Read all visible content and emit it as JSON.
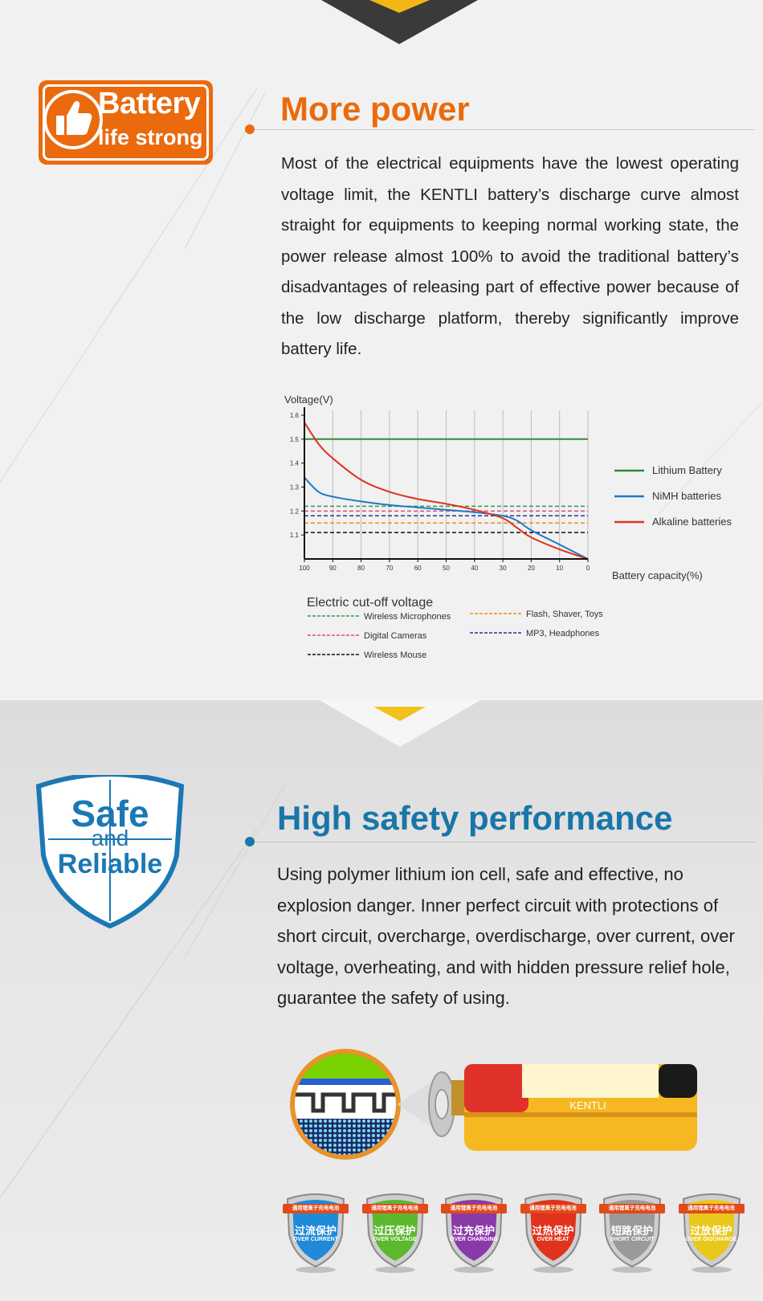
{
  "section_power": {
    "badge": {
      "line1": "Battery",
      "line2": "life strong"
    },
    "title": "More power",
    "paragraph": "Most of the electrical equipments have the lowest operating voltage limit, the KENTLI battery’s discharge curve almost straight for equipments to keeping normal working state, the power release almost 100% to avoid the traditional battery’s disadvantages of releasing part of effective power because of the low discharge platform, thereby significantly improve battery life.",
    "accent_color": "#ea6a0d"
  },
  "chart_data": {
    "type": "line",
    "ylabel": "Voltage(V)",
    "xlabel": "Battery capacity(%)",
    "x_ticks": [
      100,
      90,
      80,
      70,
      60,
      50,
      40,
      30,
      20,
      10,
      0
    ],
    "y_ticks": [
      1.1,
      1.2,
      1.3,
      1.4,
      1.5,
      1.6
    ],
    "xlim": [
      100,
      0
    ],
    "ylim": [
      1.0,
      1.62
    ],
    "grid": "vertical",
    "legend_position": "right",
    "series": [
      {
        "name": "Lithium Battery",
        "color": "#2e8b3a",
        "x": [
          100,
          0
        ],
        "y": [
          1.5,
          1.5
        ]
      },
      {
        "name": "NiMH batteries",
        "color": "#1e78c8",
        "x": [
          100,
          95,
          90,
          80,
          70,
          60,
          50,
          40,
          30,
          25,
          20,
          10,
          0
        ],
        "y": [
          1.34,
          1.28,
          1.26,
          1.24,
          1.225,
          1.215,
          1.205,
          1.195,
          1.18,
          1.16,
          1.12,
          1.06,
          1.0
        ]
      },
      {
        "name": "Alkaline batteries",
        "color": "#e0321c",
        "x": [
          100,
          95,
          90,
          80,
          70,
          60,
          50,
          40,
          30,
          25,
          20,
          10,
          0
        ],
        "y": [
          1.57,
          1.48,
          1.42,
          1.33,
          1.28,
          1.25,
          1.23,
          1.205,
          1.17,
          1.13,
          1.09,
          1.04,
          1.0
        ]
      }
    ],
    "cutoff_title": "Electric cut-off voltage",
    "cutoffs": [
      {
        "name": "Wireless Microphones",
        "color": "#2e9a4e",
        "y": 1.22
      },
      {
        "name": "Digital Cameras",
        "color": "#e04a7a",
        "y": 1.2
      },
      {
        "name": "Wireless Mouse",
        "color": "#111111",
        "y": 1.11
      },
      {
        "name": "Flash, Shaver, Toys",
        "color": "#f08a1c",
        "y": 1.15
      },
      {
        "name": "MP3, Headphones",
        "color": "#3a2a8a",
        "y": 1.18
      }
    ]
  },
  "section_safety": {
    "badge": {
      "line1": "Safe",
      "line2": "and",
      "line3": "Reliable"
    },
    "title": "High safety performance",
    "paragraph": "Using polymer lithium ion cell, safe and effective, no explosion danger. Inner perfect circuit with protections of short circuit, overcharge, overdischarge, over current, over voltage, overheating, and with hidden pressure relief hole, guarantee the safety of using.",
    "accent_color": "#1976a8",
    "battery_brand": "KENTLI",
    "ribbon_text": "通用锂离子充电电池",
    "protections": [
      {
        "cn": "过流保护",
        "en": "OVER CURRENT",
        "color": "#1e8ad8"
      },
      {
        "cn": "过压保护",
        "en": "OVER VOLTAGE",
        "color": "#5cb82e"
      },
      {
        "cn": "过充保护",
        "en": "OVER CHARGING",
        "color": "#8a3aa8"
      },
      {
        "cn": "过热保护",
        "en": "OVER HEAT",
        "color": "#e0321c"
      },
      {
        "cn": "短路保护",
        "en": "SHORT CIRCUIT",
        "color": "#9a9a9a"
      },
      {
        "cn": "过放保护",
        "en": "OVER DISCHARGE",
        "color": "#e8c81a"
      }
    ]
  }
}
